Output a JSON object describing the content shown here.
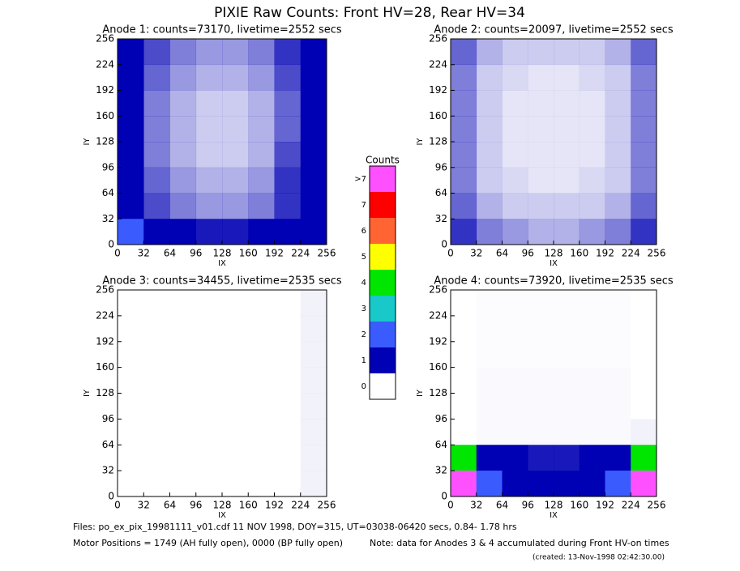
{
  "title": "PIXIE Raw Counts:  Front HV=28, Rear HV=34",
  "chart_data": [
    {
      "type": "heatmap",
      "title": "Anode 1: counts=73170, livetime=2552 secs",
      "x_label": "IX",
      "y_label": "IY",
      "xlim": [
        0,
        256
      ],
      "ylim": [
        0,
        256
      ],
      "xticks": [
        0,
        32,
        64,
        96,
        128,
        160,
        192,
        224,
        256
      ],
      "yticks": [
        0,
        32,
        64,
        96,
        128,
        160,
        192,
        224,
        256
      ],
      "values": [
        [
          1.6,
          0.7,
          0.5,
          0.4,
          0.4,
          0.5,
          0.8,
          1.4
        ],
        [
          1.5,
          0.6,
          0.4,
          0.3,
          0.3,
          0.4,
          0.7,
          1.3
        ],
        [
          1.4,
          0.5,
          0.3,
          0.2,
          0.2,
          0.3,
          0.6,
          1.2
        ],
        [
          1.4,
          0.5,
          0.3,
          0.2,
          0.2,
          0.3,
          0.6,
          1.2
        ],
        [
          1.5,
          0.5,
          0.3,
          0.2,
          0.2,
          0.3,
          0.7,
          1.3
        ],
        [
          1.5,
          0.6,
          0.4,
          0.3,
          0.3,
          0.4,
          0.8,
          1.3
        ],
        [
          1.6,
          0.7,
          0.5,
          0.4,
          0.4,
          0.5,
          0.8,
          1.4
        ],
        [
          2.2,
          1.2,
          1.0,
          0.9,
          0.9,
          1.0,
          1.2,
          1.8
        ]
      ]
    },
    {
      "type": "heatmap",
      "title": "Anode 2: counts=20097, livetime=2552 secs",
      "x_label": "IX",
      "y_label": "IY",
      "xlim": [
        0,
        256
      ],
      "ylim": [
        0,
        256
      ],
      "xticks": [
        0,
        32,
        64,
        96,
        128,
        160,
        192,
        224,
        256
      ],
      "yticks": [
        0,
        32,
        64,
        96,
        128,
        160,
        192,
        224,
        256
      ],
      "values": [
        [
          0.6,
          0.3,
          0.2,
          0.2,
          0.2,
          0.2,
          0.3,
          0.6
        ],
        [
          0.5,
          0.2,
          0.15,
          0.1,
          0.1,
          0.15,
          0.2,
          0.5
        ],
        [
          0.5,
          0.2,
          0.1,
          0.1,
          0.1,
          0.1,
          0.2,
          0.5
        ],
        [
          0.5,
          0.2,
          0.1,
          0.1,
          0.1,
          0.1,
          0.2,
          0.5
        ],
        [
          0.5,
          0.2,
          0.1,
          0.1,
          0.1,
          0.1,
          0.2,
          0.5
        ],
        [
          0.5,
          0.2,
          0.15,
          0.1,
          0.1,
          0.15,
          0.2,
          0.5
        ],
        [
          0.6,
          0.3,
          0.2,
          0.2,
          0.2,
          0.2,
          0.3,
          0.6
        ],
        [
          0.8,
          0.5,
          0.4,
          0.3,
          0.3,
          0.4,
          0.5,
          0.8
        ]
      ]
    },
    {
      "type": "heatmap",
      "title": "Anode 3: counts=34455, livetime=2535 secs",
      "x_label": "IX",
      "y_label": "IY",
      "xlim": [
        0,
        256
      ],
      "ylim": [
        0,
        256
      ],
      "xticks": [
        0,
        32,
        64,
        96,
        128,
        160,
        192,
        224,
        256
      ],
      "yticks": [
        0,
        32,
        64,
        96,
        128,
        160,
        192,
        224,
        256
      ],
      "values": [
        [
          0,
          0,
          0,
          0,
          0,
          0,
          0,
          0.05
        ],
        [
          0,
          0,
          0,
          0,
          0,
          0,
          0,
          0.05
        ],
        [
          0,
          0,
          0,
          0,
          0,
          0,
          0,
          0.05
        ],
        [
          0,
          0,
          0,
          0,
          0,
          0,
          0,
          0.05
        ],
        [
          0,
          0,
          0,
          0,
          0,
          0,
          0,
          0.05
        ],
        [
          0,
          0,
          0,
          0,
          0,
          0,
          0,
          0.05
        ],
        [
          0,
          0,
          0,
          0,
          0,
          0,
          0,
          0.05
        ],
        [
          0,
          0,
          0,
          0,
          0,
          0,
          0,
          0.05
        ]
      ]
    },
    {
      "type": "heatmap",
      "title": "Anode 4: counts=73920, livetime=2535 secs",
      "x_label": "IX",
      "y_label": "IY",
      "xlim": [
        0,
        256
      ],
      "ylim": [
        0,
        256
      ],
      "xticks": [
        0,
        32,
        64,
        96,
        128,
        160,
        192,
        224,
        256
      ],
      "yticks": [
        0,
        32,
        64,
        96,
        128,
        160,
        192,
        224,
        256
      ],
      "values": [
        [
          0,
          0.01,
          0.01,
          0.01,
          0.01,
          0.01,
          0.01,
          0
        ],
        [
          0,
          0.01,
          0.01,
          0.01,
          0.01,
          0.01,
          0.01,
          0
        ],
        [
          0,
          0.01,
          0.01,
          0.01,
          0.01,
          0.01,
          0.01,
          0
        ],
        [
          0,
          0.02,
          0.02,
          0.02,
          0.02,
          0.02,
          0.02,
          0
        ],
        [
          0,
          0.02,
          0.02,
          0.02,
          0.02,
          0.02,
          0.02,
          0
        ],
        [
          0,
          0.02,
          0.02,
          0.02,
          0.02,
          0.02,
          0.02,
          0.05
        ],
        [
          4,
          1.2,
          1.0,
          0.9,
          0.9,
          1.0,
          1.3,
          4
        ],
        [
          8,
          2.5,
          1.6,
          1.4,
          1.4,
          1.6,
          2.6,
          8
        ]
      ]
    }
  ],
  "colorbar": {
    "title": "Counts",
    "ticks": [
      0,
      1,
      2,
      3,
      4,
      5,
      6,
      7,
      {
        "value": 8,
        "label": ">7"
      }
    ],
    "colors": [
      "#ffffff",
      "#0000b4",
      "#3a5cff",
      "#19c8c8",
      "#00e600",
      "#ffff00",
      "#ff6432",
      "#ff0000",
      "#ff50ff"
    ]
  },
  "footer": {
    "files": "Files: po_ex_pix_19981111_v01.cdf    11 NOV 1998, DOY=315, UT=03038-06420 secs,  0.84- 1.78 hrs",
    "motor": "Motor Positions = 1749 (AH fully open), 0000 (BP fully open)",
    "note": "Note: data for Anodes 3 & 4 accumulated during Front HV-on times",
    "created": "(created: 13-Nov-1998 02:42:30.00)"
  }
}
